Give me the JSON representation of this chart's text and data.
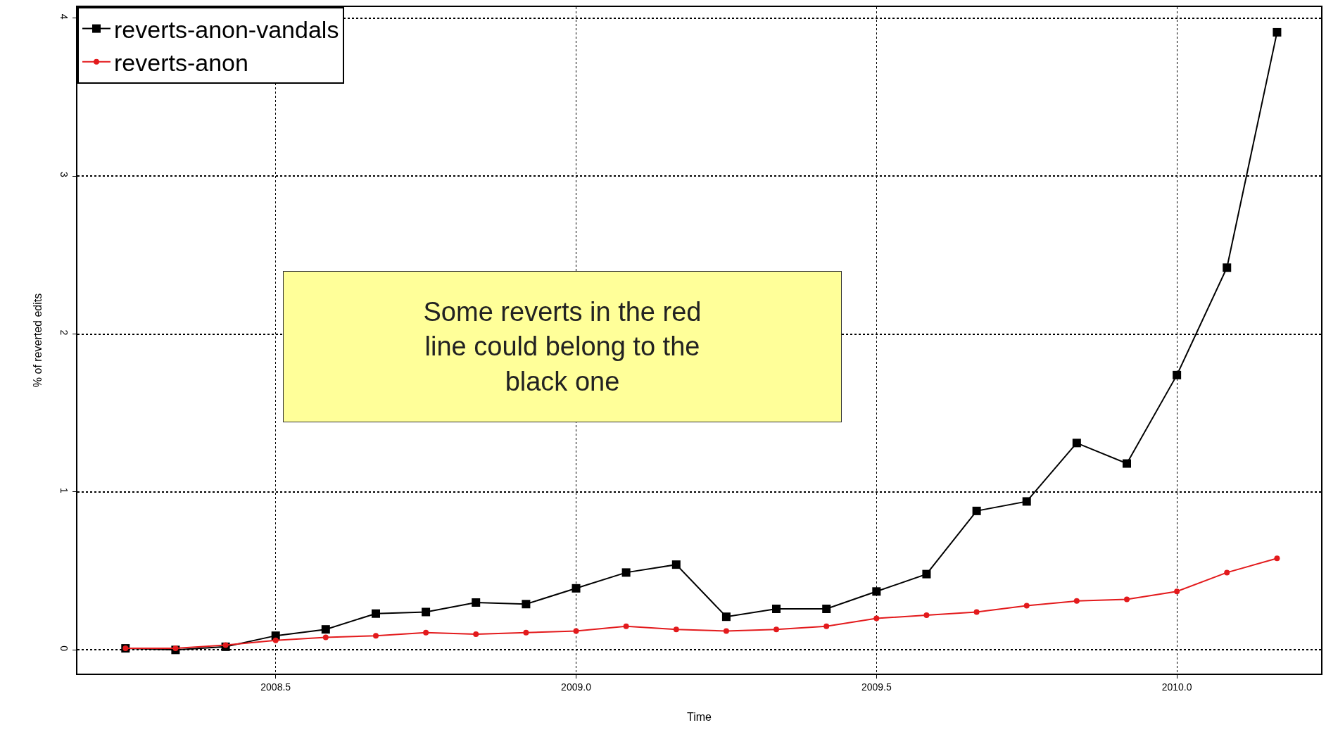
{
  "chart_data": {
    "type": "line",
    "xlabel": "Time",
    "ylabel": "% of reverted edits",
    "x": [
      2008.25,
      2008.3333,
      2008.4167,
      2008.5,
      2008.5833,
      2008.6667,
      2008.75,
      2008.8333,
      2008.9167,
      2009.0,
      2009.0833,
      2009.1667,
      2009.25,
      2009.3333,
      2009.4167,
      2009.5,
      2009.5833,
      2009.6667,
      2009.75,
      2009.8333,
      2009.9167,
      2010.0,
      2010.0833,
      2010.1667
    ],
    "series": [
      {
        "name": "reverts-anon-vandals",
        "color": "#000000",
        "marker": "square",
        "values": [
          0.01,
          0.0,
          0.02,
          0.09,
          0.13,
          0.23,
          0.24,
          0.3,
          0.29,
          0.39,
          0.49,
          0.54,
          0.21,
          0.26,
          0.26,
          0.37,
          0.48,
          0.88,
          0.94,
          1.31,
          1.18,
          1.74,
          2.42,
          3.91
        ]
      },
      {
        "name": "reverts-anon",
        "color": "#e31a1c",
        "marker": "circle",
        "values": [
          0.01,
          0.01,
          0.03,
          0.06,
          0.08,
          0.09,
          0.11,
          0.1,
          0.11,
          0.12,
          0.15,
          0.13,
          0.12,
          0.13,
          0.15,
          0.2,
          0.22,
          0.24,
          0.28,
          0.31,
          0.32,
          0.37,
          0.49,
          0.58
        ]
      }
    ],
    "xlim": [
      2008.17,
      2010.24
    ],
    "xticks": [
      {
        "value": 2008.5,
        "label": "2008.5"
      },
      {
        "value": 2009.0,
        "label": "2009.0"
      },
      {
        "value": 2009.5,
        "label": "2009.5"
      },
      {
        "value": 2010.0,
        "label": "2010.0"
      }
    ],
    "ylim": [
      -0.15,
      4.07
    ],
    "yticks": [
      0,
      1,
      2,
      3,
      4
    ],
    "grid": true,
    "legend": "top left",
    "line_style": "solid",
    "annotations": [
      "Some reverts in the red line could belong to the black one"
    ]
  }
}
